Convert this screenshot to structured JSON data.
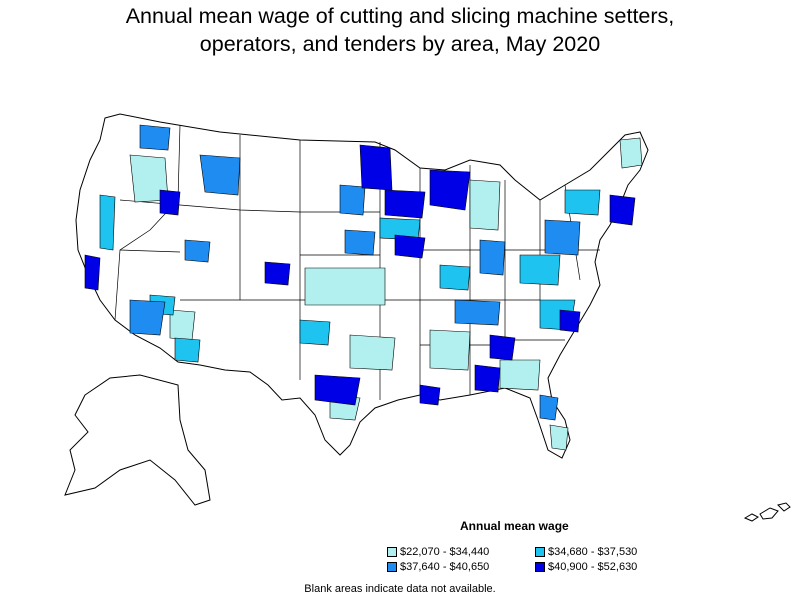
{
  "title_line1": "Annual mean wage of cutting and slicing machine setters,",
  "title_line2": "operators, and tenders by area, May 2020",
  "legend": {
    "title": "Annual mean wage",
    "items": [
      {
        "label": "$22,070 - $34,440",
        "color": "#b2f0f0"
      },
      {
        "label": "$34,680 - $37,530",
        "color": "#1ec3f0"
      },
      {
        "label": "$37,640 - $40,650",
        "color": "#1e8cf0"
      },
      {
        "label": "$40,900 - $52,630",
        "color": "#0000e6"
      }
    ]
  },
  "note": "Blank areas indicate data not available.",
  "colors": {
    "no_data": "#ffffff",
    "border": "#000000"
  }
}
